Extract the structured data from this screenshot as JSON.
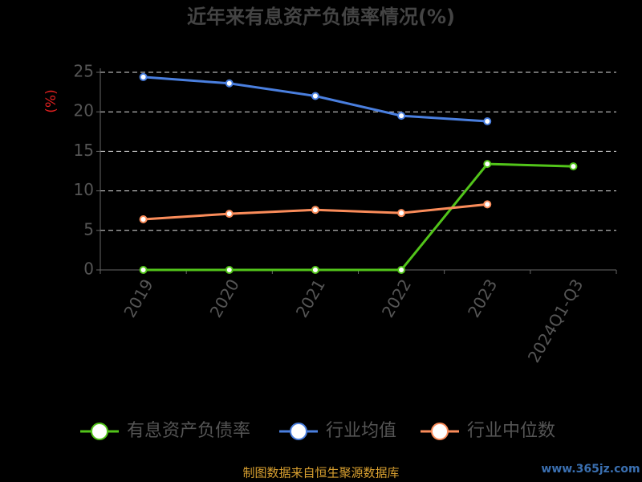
{
  "chart_data": {
    "type": "line",
    "title": "近年来有息资产负债率情况(%)",
    "y_label": "(%)",
    "categories": [
      "2019",
      "2020",
      "2021",
      "2022",
      "2023",
      "2024Q1-Q3"
    ],
    "series": [
      {
        "name": "有息资产负债率",
        "color": "#52c41a",
        "values": [
          0,
          0,
          0,
          0,
          13.4,
          13.1
        ]
      },
      {
        "name": "行业均值",
        "color": "#4a7fdf",
        "values": [
          24.4,
          23.6,
          22.0,
          19.5,
          18.8,
          null
        ]
      },
      {
        "name": "行业中位数",
        "color": "#fa8c5a",
        "values": [
          6.4,
          7.1,
          7.6,
          7.2,
          8.3,
          null
        ]
      }
    ],
    "ylim": [
      0,
      25
    ],
    "yticks": [
      0,
      5,
      10,
      15,
      20,
      25
    ],
    "grid": true,
    "legend": "bottom",
    "source": "制图数据来自恒生聚源数据库",
    "watermark": "www.365jz.com"
  }
}
